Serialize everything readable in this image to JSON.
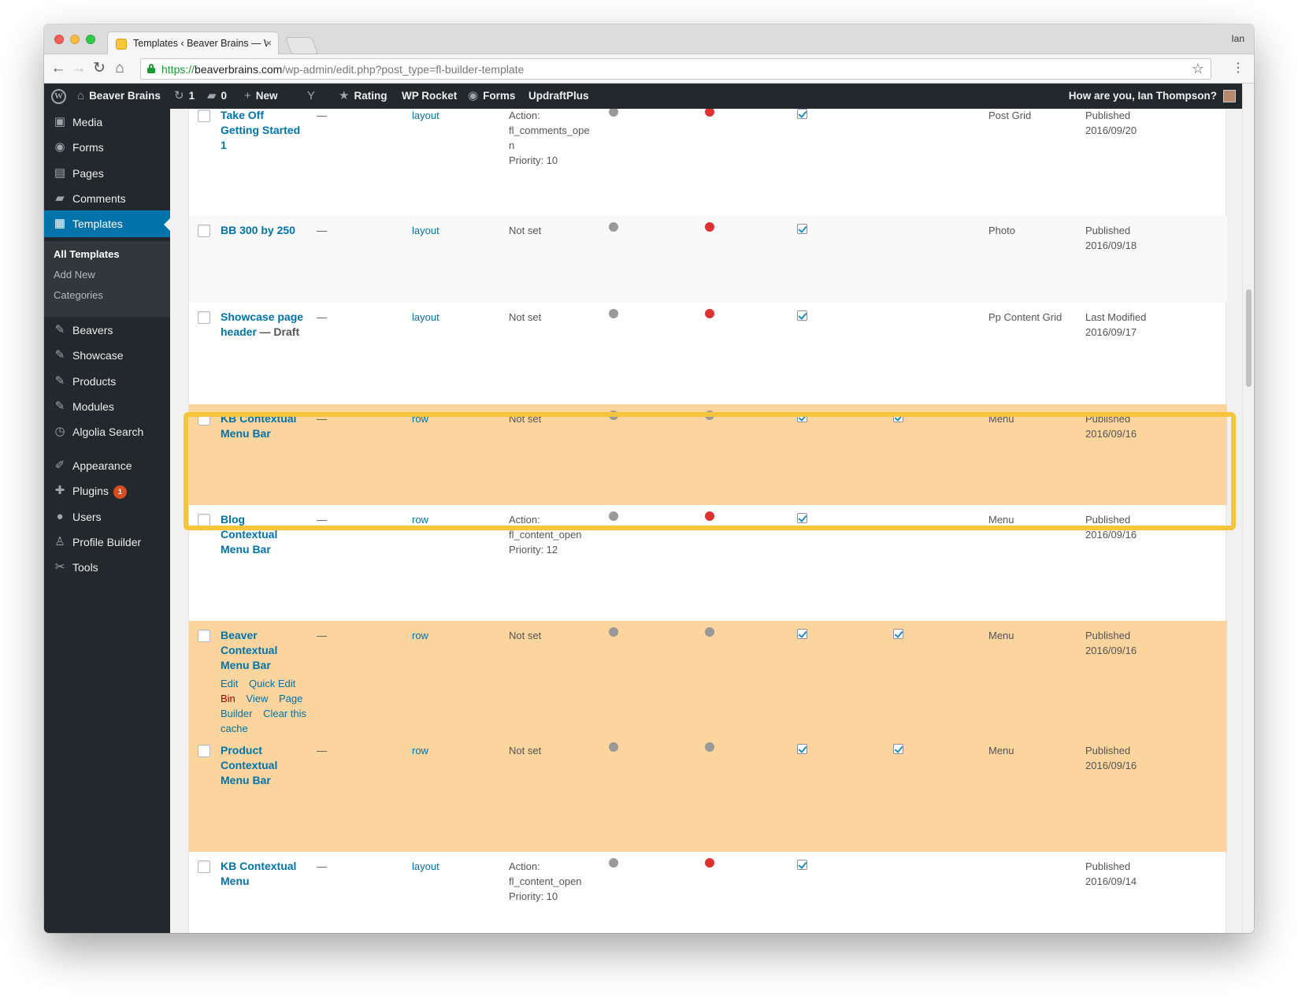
{
  "browser": {
    "tab_title": "Templates ‹ Beaver Brains — W",
    "tab_close": "×",
    "profile": "Ian",
    "url_scheme": "https://",
    "url_host": "beaverbrains.com",
    "url_path": "/wp-admin/edit.php?post_type=fl-builder-template",
    "back": "←",
    "forward": "→",
    "reload": "↻",
    "home": "⌂",
    "star": "☆",
    "menu": "⋮"
  },
  "adminbar": {
    "site_name": "Beaver Brains",
    "updates_count": "1",
    "comments_count": "0",
    "new_label": "New",
    "rating": "Rating",
    "wp_rocket": "WP Rocket",
    "forms": "Forms",
    "updraft": "UpdraftPlus",
    "greeting": "How are you, Ian Thompson?"
  },
  "sidebar": {
    "items": [
      {
        "label": "Media",
        "icon": "media-icon",
        "glyph": "▣"
      },
      {
        "label": "Forms",
        "icon": "forms-icon",
        "glyph": "◉"
      },
      {
        "label": "Pages",
        "icon": "pages-icon",
        "glyph": "▤"
      },
      {
        "label": "Comments",
        "icon": "comments-icon",
        "glyph": "▰"
      },
      {
        "label": "Templates",
        "icon": "templates-icon",
        "glyph": "▦"
      },
      {
        "label": "Beavers",
        "icon": "pin-icon",
        "glyph": "✎"
      },
      {
        "label": "Showcase",
        "icon": "pin-icon",
        "glyph": "✎"
      },
      {
        "label": "Products",
        "icon": "pin-icon",
        "glyph": "✎"
      },
      {
        "label": "Modules",
        "icon": "pin-icon",
        "glyph": "✎"
      },
      {
        "label": "Algolia Search",
        "icon": "algolia-icon",
        "glyph": "◷"
      },
      {
        "label": "Appearance",
        "icon": "appearance-icon",
        "glyph": "✐"
      },
      {
        "label": "Plugins",
        "icon": "plugins-icon",
        "glyph": "✚",
        "badge": "1"
      },
      {
        "label": "Users",
        "icon": "users-icon",
        "glyph": "●"
      },
      {
        "label": "Profile Builder",
        "icon": "profile-icon",
        "glyph": "♙"
      },
      {
        "label": "Tools",
        "icon": "tools-icon",
        "glyph": "✂"
      }
    ],
    "submenu": [
      "All Templates",
      "Add New",
      "Categories"
    ]
  },
  "rows": [
    {
      "title": [
        "Take Off",
        "Getting Started",
        "1"
      ],
      "draft": "",
      "dash": "—",
      "type": "layout",
      "action": [
        "Action:",
        "fl_comments_ope",
        "n",
        "Priority: 10"
      ],
      "dot1": "gray",
      "dot2": "red",
      "chk1": true,
      "chk2": false,
      "module": "Post Grid",
      "status": "Published",
      "date": "2016/09/20"
    },
    {
      "title": [
        "BB 300 by 250"
      ],
      "draft": "",
      "dash": "—",
      "type": "layout",
      "action": [
        "Not set"
      ],
      "dot1": "gray",
      "dot2": "red",
      "chk1": true,
      "chk2": false,
      "module": "Photo",
      "status": "Published",
      "date": "2016/09/18"
    },
    {
      "title": [
        "Showcase page",
        "header"
      ],
      "draft": "— Draft",
      "dash": "—",
      "type": "layout",
      "action": [
        "Not set"
      ],
      "dot1": "gray",
      "dot2": "red",
      "chk1": true,
      "chk2": false,
      "module": "Pp Content Grid",
      "status": "Last Modified",
      "date": "2016/09/17"
    },
    {
      "title": [
        "KB Contextual",
        "Menu Bar"
      ],
      "draft": "",
      "dash": "—",
      "type": "row",
      "action": [
        "Not set"
      ],
      "dot1": "gray",
      "dot2": "gray",
      "chk1": true,
      "chk2": true,
      "module": "Menu",
      "status": "Published",
      "date": "2016/09/16"
    },
    {
      "title": [
        "Blog",
        "Contextual",
        "Menu Bar"
      ],
      "draft": "",
      "dash": "—",
      "type": "row",
      "action": [
        "Action:",
        "fl_content_open",
        "Priority: 12"
      ],
      "dot1": "gray",
      "dot2": "red",
      "chk1": true,
      "chk2": false,
      "module": "Menu",
      "status": "Published",
      "date": "2016/09/16"
    },
    {
      "title": [
        "Beaver",
        "Contextual",
        "Menu Bar"
      ],
      "draft": "",
      "dash": "—",
      "type": "row",
      "action": [
        "Not set"
      ],
      "dot1": "gray",
      "dot2": "gray",
      "chk1": true,
      "chk2": true,
      "module": "Menu",
      "status": "Published",
      "date": "2016/09/16"
    },
    {
      "title": [
        "Product",
        "Contextual",
        "Menu Bar"
      ],
      "draft": "",
      "dash": "—",
      "type": "row",
      "action": [
        "Not set"
      ],
      "dot1": "gray",
      "dot2": "gray",
      "chk1": true,
      "chk2": true,
      "module": "Menu",
      "status": "Published",
      "date": "2016/09/16"
    },
    {
      "title": [
        "KB Contextual",
        "Menu"
      ],
      "draft": "",
      "dash": "—",
      "type": "layout",
      "action": [
        "Action:",
        "fl_content_open",
        "Priority: 10"
      ],
      "dot1": "gray",
      "dot2": "red",
      "chk1": true,
      "chk2": false,
      "module": "",
      "status": "Published",
      "date": "2016/09/14"
    }
  ],
  "row_actions": {
    "edit": "Edit",
    "quick_edit": "Quick Edit",
    "bin": "Bin",
    "view": "View",
    "page_builder": "Page Builder",
    "clear_cache": "Clear this cache"
  },
  "colors": {
    "admin_dark": "#23282d",
    "accent": "#0073aa",
    "highlight_row": "#fbd49e",
    "highlight_frame": "#f8c53a",
    "dot_red": "#dc3232",
    "dot_gray": "#999999"
  }
}
